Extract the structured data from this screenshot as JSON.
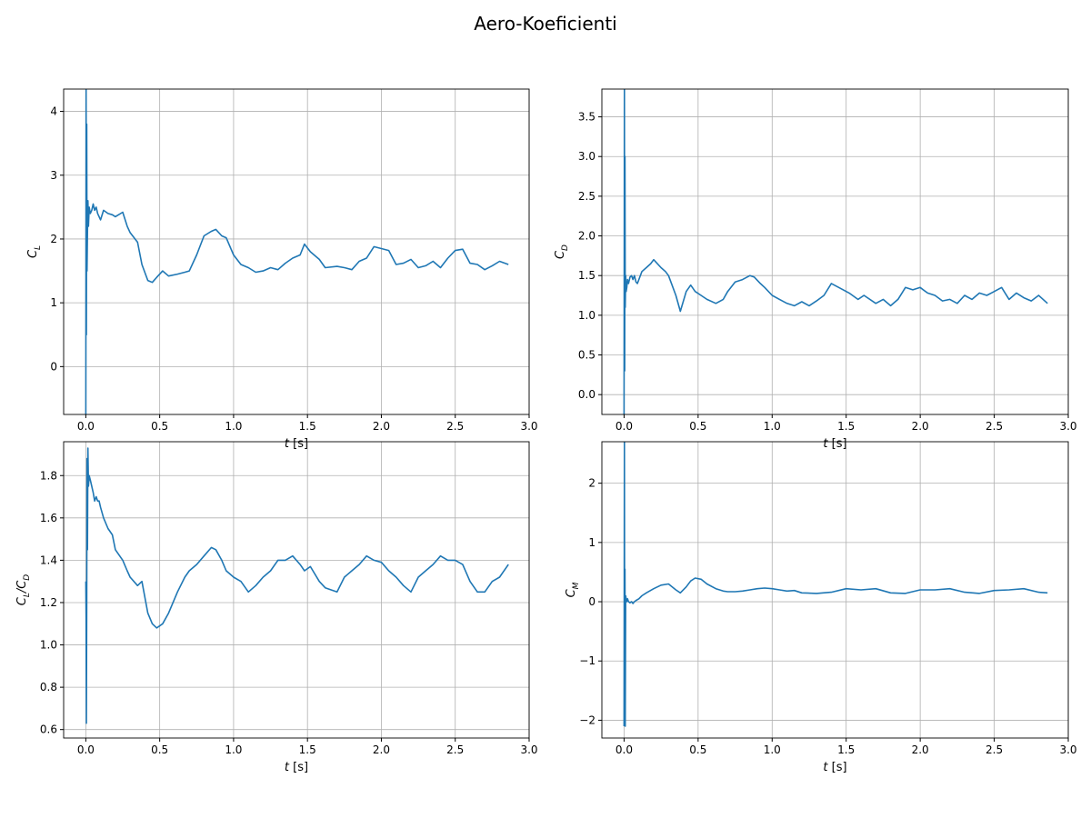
{
  "figure": {
    "title": "Aero-Koeficienti"
  },
  "chart_data": [
    {
      "type": "line",
      "id": "cl",
      "ylabel_base": "C",
      "ylabel_sub": "L",
      "xlabel_italic": "t",
      "xlabel_rest": " [s]",
      "xlim": [
        -0.15,
        3.0
      ],
      "ylim": [
        -0.75,
        4.35
      ],
      "xticks": [
        0.0,
        0.5,
        1.0,
        1.5,
        2.0,
        2.5,
        3.0
      ],
      "xtick_labels": [
        "0.0",
        "0.5",
        "1.0",
        "1.5",
        "2.0",
        "2.5",
        "3.0"
      ],
      "yticks": [
        0,
        1,
        2,
        3,
        4
      ],
      "ytick_labels": [
        "0",
        "1",
        "2",
        "3",
        "4"
      ],
      "grid": true,
      "color": "#1f77b4",
      "x": [
        0.0,
        0.002,
        0.004,
        0.006,
        0.008,
        0.011,
        0.014,
        0.018,
        0.023,
        0.03,
        0.04,
        0.05,
        0.06,
        0.07,
        0.08,
        0.09,
        0.1,
        0.12,
        0.15,
        0.18,
        0.2,
        0.25,
        0.28,
        0.3,
        0.35,
        0.38,
        0.42,
        0.45,
        0.48,
        0.52,
        0.56,
        0.62,
        0.67,
        0.7,
        0.75,
        0.8,
        0.85,
        0.88,
        0.92,
        0.95,
        1.0,
        1.05,
        1.1,
        1.15,
        1.2,
        1.25,
        1.3,
        1.35,
        1.4,
        1.45,
        1.48,
        1.52,
        1.58,
        1.62,
        1.7,
        1.75,
        1.8,
        1.85,
        1.9,
        1.95,
        2.0,
        2.05,
        2.1,
        2.15,
        2.2,
        2.25,
        2.3,
        2.35,
        2.4,
        2.45,
        2.5,
        2.55,
        2.6,
        2.65,
        2.7,
        2.75,
        2.8,
        2.86
      ],
      "y": [
        -0.8,
        4.4,
        0.5,
        3.8,
        1.5,
        2.1,
        2.6,
        2.2,
        2.5,
        2.4,
        2.45,
        2.55,
        2.45,
        2.5,
        2.4,
        2.35,
        2.3,
        2.45,
        2.4,
        2.38,
        2.35,
        2.42,
        2.2,
        2.1,
        1.95,
        1.6,
        1.35,
        1.32,
        1.4,
        1.5,
        1.42,
        1.45,
        1.48,
        1.5,
        1.75,
        2.05,
        2.12,
        2.15,
        2.05,
        2.02,
        1.75,
        1.6,
        1.55,
        1.48,
        1.5,
        1.55,
        1.52,
        1.62,
        1.7,
        1.75,
        1.92,
        1.8,
        1.68,
        1.55,
        1.57,
        1.55,
        1.52,
        1.65,
        1.7,
        1.88,
        1.85,
        1.82,
        1.6,
        1.62,
        1.68,
        1.55,
        1.58,
        1.65,
        1.55,
        1.7,
        1.82,
        1.84,
        1.62,
        1.6,
        1.52,
        1.58,
        1.65,
        1.6
      ]
    },
    {
      "type": "line",
      "id": "cd",
      "ylabel_base": "C",
      "ylabel_sub": "D",
      "xlabel_italic": "t",
      "xlabel_rest": " [s]",
      "xlim": [
        -0.15,
        3.0
      ],
      "ylim": [
        -0.25,
        3.85
      ],
      "xticks": [
        0.0,
        0.5,
        1.0,
        1.5,
        2.0,
        2.5,
        3.0
      ],
      "xtick_labels": [
        "0.0",
        "0.5",
        "1.0",
        "1.5",
        "2.0",
        "2.5",
        "3.0"
      ],
      "yticks": [
        0.0,
        0.5,
        1.0,
        1.5,
        2.0,
        2.5,
        3.0,
        3.5
      ],
      "ytick_labels": [
        "0.0",
        "0.5",
        "1.0",
        "1.5",
        "2.0",
        "2.5",
        "3.0",
        "3.5"
      ],
      "grid": true,
      "color": "#1f77b4",
      "x": [
        0.0,
        0.002,
        0.004,
        0.006,
        0.008,
        0.011,
        0.014,
        0.018,
        0.023,
        0.03,
        0.04,
        0.05,
        0.06,
        0.07,
        0.08,
        0.09,
        0.1,
        0.12,
        0.15,
        0.18,
        0.2,
        0.25,
        0.28,
        0.3,
        0.35,
        0.38,
        0.42,
        0.45,
        0.48,
        0.52,
        0.56,
        0.62,
        0.67,
        0.7,
        0.75,
        0.8,
        0.85,
        0.88,
        0.92,
        0.95,
        1.0,
        1.05,
        1.1,
        1.15,
        1.2,
        1.25,
        1.3,
        1.35,
        1.4,
        1.45,
        1.48,
        1.52,
        1.58,
        1.62,
        1.7,
        1.75,
        1.8,
        1.85,
        1.9,
        1.95,
        2.0,
        2.05,
        2.1,
        2.15,
        2.2,
        2.25,
        2.3,
        2.35,
        2.4,
        2.45,
        2.5,
        2.55,
        2.6,
        2.65,
        2.7,
        2.75,
        2.8,
        2.86
      ],
      "y": [
        -0.3,
        3.9,
        0.3,
        3.0,
        1.1,
        1.5,
        1.3,
        1.35,
        1.45,
        1.4,
        1.48,
        1.5,
        1.45,
        1.5,
        1.42,
        1.4,
        1.45,
        1.55,
        1.6,
        1.65,
        1.7,
        1.6,
        1.55,
        1.5,
        1.25,
        1.05,
        1.3,
        1.38,
        1.3,
        1.25,
        1.2,
        1.15,
        1.2,
        1.3,
        1.42,
        1.45,
        1.5,
        1.48,
        1.4,
        1.35,
        1.25,
        1.2,
        1.15,
        1.12,
        1.17,
        1.12,
        1.18,
        1.25,
        1.4,
        1.35,
        1.32,
        1.28,
        1.2,
        1.25,
        1.15,
        1.2,
        1.12,
        1.2,
        1.35,
        1.32,
        1.35,
        1.28,
        1.25,
        1.18,
        1.2,
        1.15,
        1.25,
        1.2,
        1.28,
        1.25,
        1.3,
        1.35,
        1.2,
        1.28,
        1.22,
        1.18,
        1.25,
        1.15
      ]
    },
    {
      "type": "line",
      "id": "clcd",
      "ylabel_base": "C",
      "ylabel_sub": "L",
      "ylabel_mid": "/C",
      "ylabel_sub2": "D",
      "xlabel_italic": "t",
      "xlabel_rest": " [s]",
      "xlim": [
        -0.15,
        3.0
      ],
      "ylim": [
        0.56,
        1.96
      ],
      "xticks": [
        0.0,
        0.5,
        1.0,
        1.5,
        2.0,
        2.5,
        3.0
      ],
      "xtick_labels": [
        "0.0",
        "0.5",
        "1.0",
        "1.5",
        "2.0",
        "2.5",
        "3.0"
      ],
      "yticks": [
        0.6,
        0.8,
        1.0,
        1.2,
        1.4,
        1.6,
        1.8
      ],
      "ytick_labels": [
        "0.6",
        "0.8",
        "1.0",
        "1.2",
        "1.4",
        "1.6",
        "1.8"
      ],
      "grid": true,
      "color": "#1f77b4",
      "x": [
        0.0,
        0.002,
        0.004,
        0.006,
        0.008,
        0.011,
        0.014,
        0.018,
        0.023,
        0.03,
        0.04,
        0.05,
        0.06,
        0.07,
        0.08,
        0.09,
        0.1,
        0.12,
        0.15,
        0.18,
        0.2,
        0.25,
        0.28,
        0.3,
        0.35,
        0.38,
        0.42,
        0.45,
        0.48,
        0.52,
        0.56,
        0.62,
        0.67,
        0.7,
        0.75,
        0.8,
        0.85,
        0.88,
        0.92,
        0.95,
        1.0,
        1.05,
        1.1,
        1.15,
        1.2,
        1.25,
        1.3,
        1.35,
        1.4,
        1.45,
        1.48,
        1.52,
        1.58,
        1.62,
        1.7,
        1.75,
        1.8,
        1.85,
        1.9,
        1.95,
        2.0,
        2.05,
        2.1,
        2.15,
        2.2,
        2.25,
        2.3,
        2.35,
        2.4,
        2.45,
        2.5,
        2.55,
        2.6,
        2.65,
        2.7,
        2.75,
        2.8,
        2.86
      ],
      "y": [
        1.3,
        1.13,
        0.63,
        1.2,
        1.88,
        1.45,
        1.93,
        1.75,
        1.8,
        1.78,
        1.75,
        1.72,
        1.68,
        1.7,
        1.68,
        1.68,
        1.65,
        1.6,
        1.55,
        1.52,
        1.45,
        1.4,
        1.35,
        1.32,
        1.28,
        1.3,
        1.15,
        1.1,
        1.08,
        1.1,
        1.15,
        1.25,
        1.32,
        1.35,
        1.38,
        1.42,
        1.46,
        1.45,
        1.4,
        1.35,
        1.32,
        1.3,
        1.25,
        1.28,
        1.32,
        1.35,
        1.4,
        1.4,
        1.42,
        1.38,
        1.35,
        1.37,
        1.3,
        1.27,
        1.25,
        1.32,
        1.35,
        1.38,
        1.42,
        1.4,
        1.39,
        1.35,
        1.32,
        1.28,
        1.25,
        1.32,
        1.35,
        1.38,
        1.42,
        1.4,
        1.4,
        1.38,
        1.3,
        1.25,
        1.25,
        1.3,
        1.32,
        1.38
      ]
    },
    {
      "type": "line",
      "id": "cm",
      "ylabel_base": "C",
      "ylabel_sub": "M",
      "xlabel_italic": "t",
      "xlabel_rest": " [s]",
      "xlim": [
        -0.15,
        3.0
      ],
      "ylim": [
        -2.3,
        2.7
      ],
      "xticks": [
        0.0,
        0.5,
        1.0,
        1.5,
        2.0,
        2.5,
        3.0
      ],
      "xtick_labels": [
        "0.0",
        "0.5",
        "1.0",
        "1.5",
        "2.0",
        "2.5",
        "3.0"
      ],
      "yticks": [
        -2,
        -1,
        0,
        1,
        2
      ],
      "ytick_labels": [
        "−2",
        "−1",
        "0",
        "1",
        "2"
      ],
      "grid": true,
      "color": "#1f77b4",
      "x": [
        0.0,
        0.002,
        0.004,
        0.006,
        0.008,
        0.011,
        0.014,
        0.018,
        0.023,
        0.03,
        0.04,
        0.05,
        0.06,
        0.07,
        0.08,
        0.1,
        0.12,
        0.15,
        0.2,
        0.25,
        0.3,
        0.35,
        0.38,
        0.42,
        0.45,
        0.48,
        0.52,
        0.56,
        0.62,
        0.67,
        0.7,
        0.75,
        0.8,
        0.85,
        0.9,
        0.95,
        1.0,
        1.05,
        1.1,
        1.15,
        1.2,
        1.3,
        1.4,
        1.5,
        1.6,
        1.7,
        1.8,
        1.9,
        2.0,
        2.1,
        2.2,
        2.3,
        2.4,
        2.5,
        2.6,
        2.7,
        2.8,
        2.86
      ],
      "y": [
        -2.1,
        2.7,
        -1.5,
        0.55,
        -2.1,
        0.1,
        0.05,
        0.0,
        0.05,
        0.0,
        -0.02,
        0.0,
        -0.03,
        0.0,
        0.02,
        0.05,
        0.1,
        0.15,
        0.22,
        0.28,
        0.3,
        0.2,
        0.15,
        0.25,
        0.35,
        0.4,
        0.38,
        0.3,
        0.22,
        0.18,
        0.17,
        0.17,
        0.18,
        0.2,
        0.22,
        0.23,
        0.22,
        0.2,
        0.18,
        0.19,
        0.15,
        0.14,
        0.16,
        0.22,
        0.2,
        0.22,
        0.15,
        0.14,
        0.2,
        0.2,
        0.22,
        0.16,
        0.14,
        0.19,
        0.2,
        0.22,
        0.16,
        0.15
      ]
    }
  ]
}
